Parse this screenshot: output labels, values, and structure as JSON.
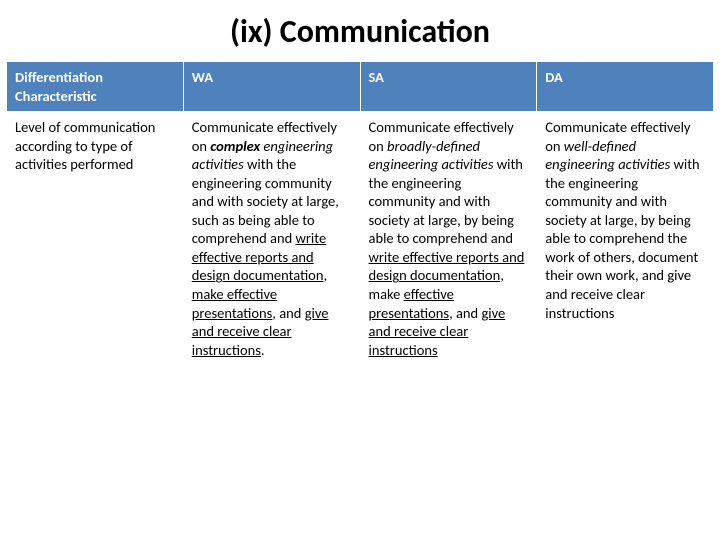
{
  "slide": {
    "title": "(ix) Communication",
    "header_bg": "#4f81bd",
    "header_fg": "#ffffff",
    "columns": [
      "Differentiation Characteristic",
      "WA",
      "SA",
      "DA"
    ],
    "row_label": "Level of communication according to type of activities performed",
    "wa": {
      "pre1": "Communicate effectively on ",
      "complex": "complex",
      "post1": " ",
      "eng_act": "engineering  activities",
      "mid": " with the engineering community and with society at large, such as being able to comprehend and ",
      "u1": "write effective reports and design documentation",
      "sep1": ", ",
      "u2": "make effective presentations",
      "sep2": ", and ",
      "u3": "give and receive clear instructions",
      "end": "."
    },
    "sa": {
      "pre1": "Communicate effectively on ",
      "broad": "broadly-defined engineering activities",
      "mid": " with the engineering community and with society at large, by being able to comprehend and ",
      "u1": "write effective reports and design documentation",
      "sep1": ", make ",
      "u2": "effective presentations",
      "sep2": ", and ",
      "u3": "give and receive clear instructions"
    },
    "da": {
      "pre1": "Communicate effectively on ",
      "well": "well-defined engineering activities",
      "mid": " with the engineering community and with society at large, by being able to comprehend the work of others, document their own work, and give and receive clear instructions"
    }
  }
}
